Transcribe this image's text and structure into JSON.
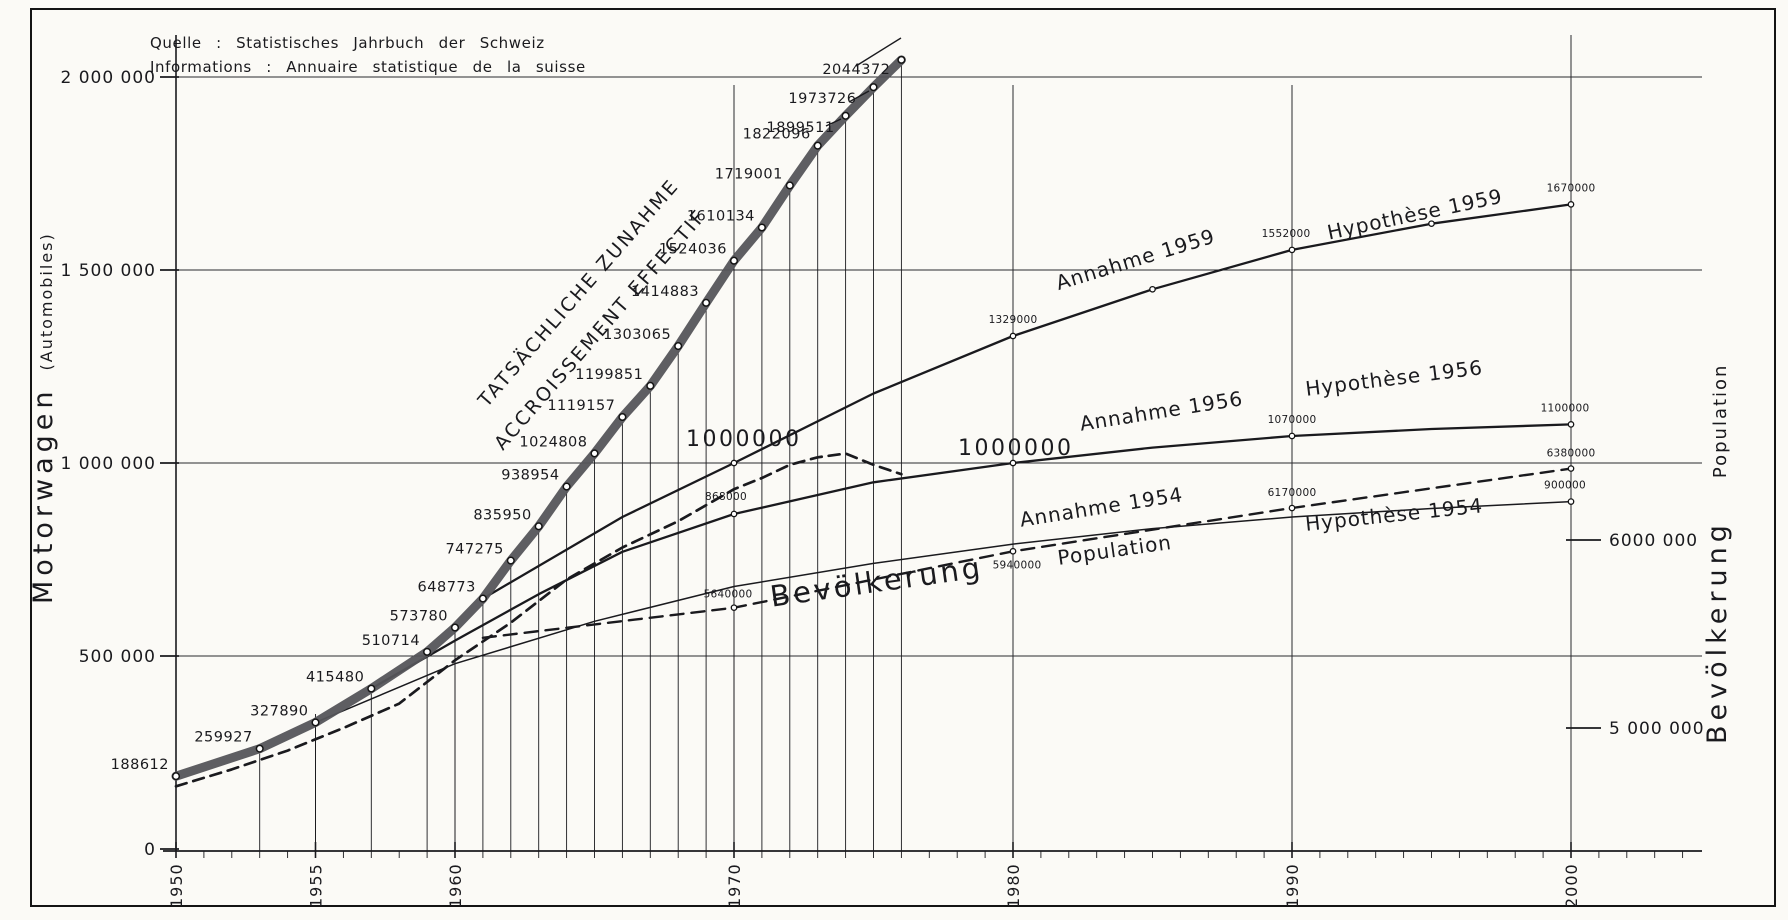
{
  "source": {
    "line1": "Quelle : Statistisches Jahrbuch der Schweiz",
    "line2": "Informations : Annuaire statistique de la suisse"
  },
  "axes": {
    "left": {
      "title_main": "Motorwagen",
      "title_sub": "(Automobiles)",
      "range": [
        0,
        2120000
      ],
      "ticks": [
        {
          "value": 2000000,
          "label": "2 000 000"
        },
        {
          "value": 1500000,
          "label": "1 500 000"
        },
        {
          "value": 1000000,
          "label": "1 000 000"
        },
        {
          "value": 500000,
          "label": "500 000"
        },
        {
          "value": 0,
          "label": "0"
        }
      ]
    },
    "right": {
      "title_main": "Bevölkerung",
      "title_sub": "Population",
      "ticks": [
        {
          "value": 6000000,
          "label": "6000 000"
        },
        {
          "value": 5000000,
          "label": "5 000 000"
        }
      ]
    },
    "x": {
      "range": [
        1950,
        2004
      ],
      "ticks": [
        1950,
        1955,
        1960,
        1970,
        1980,
        1990,
        2000
      ]
    }
  },
  "chart_data": {
    "type": "line",
    "callouts": {
      "value_1970": "1000000",
      "value_1980": "1000000"
    },
    "series": [
      {
        "name": "actual_cars",
        "annotation_de": "TATSÄCHLICHE ZUNAHME",
        "annotation_fr": "ACCROISSEMENT EFFECTIF",
        "axis": "left",
        "style": "thick-band",
        "points": [
          {
            "year": 1950,
            "value": 188612,
            "label": "188612"
          },
          {
            "year": 1953,
            "value": 259927,
            "label": "259927"
          },
          {
            "year": 1955,
            "value": 327890,
            "label": "327890"
          },
          {
            "year": 1957,
            "value": 415480,
            "label": "415480"
          },
          {
            "year": 1959,
            "value": 510714,
            "label": "510714"
          },
          {
            "year": 1960,
            "value": 573780,
            "label": "573780"
          },
          {
            "year": 1961,
            "value": 648773,
            "label": "648773"
          },
          {
            "year": 1962,
            "value": 747275,
            "label": "747275"
          },
          {
            "year": 1963,
            "value": 835950,
            "label": "835950"
          },
          {
            "year": 1964,
            "value": 938954,
            "label": "938954"
          },
          {
            "year": 1965,
            "value": 1024808,
            "label": "1024808"
          },
          {
            "year": 1966,
            "value": 1119157,
            "label": "1119157"
          },
          {
            "year": 1967,
            "value": 1199851,
            "label": "1199851"
          },
          {
            "year": 1968,
            "value": 1303065,
            "label": "1303065"
          },
          {
            "year": 1969,
            "value": 1414883,
            "label": "1414883"
          },
          {
            "year": 1970,
            "value": 1524036,
            "label": "1524036"
          },
          {
            "year": 1971,
            "value": 1610134,
            "label": "1610134"
          },
          {
            "year": 1972,
            "value": 1719001,
            "label": "1719001"
          },
          {
            "year": 1973,
            "value": 1822096,
            "label": "1822096"
          },
          {
            "year": 1974,
            "value": 1899511,
            "label": "1899511"
          },
          {
            "year": 1975,
            "value": 1973726,
            "label": "1973726"
          },
          {
            "year": 1976,
            "value": 2044372,
            "label": "2044372"
          }
        ]
      },
      {
        "name": "hypothesis_1959",
        "annotation_start": "Annahme 1959",
        "annotation_end": "Hypothèse 1959",
        "axis": "left",
        "style": "solid",
        "points": [
          {
            "year": 1961,
            "value": 648773
          },
          {
            "year": 1966,
            "value": 860000
          },
          {
            "year": 1970,
            "value": 1000000,
            "marker": true
          },
          {
            "year": 1975,
            "value": 1180000
          },
          {
            "year": 1980,
            "value": 1329000,
            "label": "1329000",
            "marker": true
          },
          {
            "year": 1985,
            "value": 1450000,
            "marker": true
          },
          {
            "year": 1990,
            "value": 1552000,
            "label": "1552000",
            "marker": true
          },
          {
            "year": 1995,
            "value": 1620000,
            "marker": true
          },
          {
            "year": 2000,
            "value": 1670000,
            "label": "1670000",
            "marker": true
          }
        ]
      },
      {
        "name": "hypothesis_1956",
        "annotation_start": "Annahme 1956",
        "annotation_end": "Hypothèse 1956",
        "axis": "left",
        "style": "solid",
        "points": [
          {
            "year": 1957,
            "value": 415480
          },
          {
            "year": 1960,
            "value": 540000
          },
          {
            "year": 1963,
            "value": 660000
          },
          {
            "year": 1966,
            "value": 770000
          },
          {
            "year": 1970,
            "value": 868000,
            "label": "868000",
            "marker": true
          },
          {
            "year": 1975,
            "value": 950000
          },
          {
            "year": 1980,
            "value": 1000000,
            "marker": true
          },
          {
            "year": 1985,
            "value": 1040000
          },
          {
            "year": 1990,
            "value": 1070000,
            "label": "1070000",
            "marker": true
          },
          {
            "year": 1995,
            "value": 1088000
          },
          {
            "year": 2000,
            "value": 1100000,
            "label": "1100000",
            "marker": true
          }
        ]
      },
      {
        "name": "hypothesis_1954",
        "annotation_start": "Annahme 1954",
        "annotation_end": "Hypothèse 1954",
        "axis": "left",
        "style": "thin-solid",
        "points": [
          {
            "year": 1955,
            "value": 327890
          },
          {
            "year": 1960,
            "value": 480000
          },
          {
            "year": 1965,
            "value": 590000
          },
          {
            "year": 1970,
            "value": 680000
          },
          {
            "year": 1975,
            "value": 740000
          },
          {
            "year": 1980,
            "value": 790000
          },
          {
            "year": 1985,
            "value": 830000
          },
          {
            "year": 1990,
            "value": 860000
          },
          {
            "year": 1995,
            "value": 882000
          },
          {
            "year": 2000,
            "value": 900000,
            "label": "900000",
            "marker": true
          }
        ]
      },
      {
        "name": "population_projection",
        "annotation_de": "Bevölkerung",
        "annotation_fr": "Population",
        "axis": "right",
        "style": "dashed",
        "points": [
          {
            "year": 1961,
            "value": 5480000
          },
          {
            "year": 1970,
            "value": 5640000,
            "label": "5640000",
            "marker": true
          },
          {
            "year": 1980,
            "value": 5940000,
            "label": "5940000",
            "marker": true
          },
          {
            "year": 1990,
            "value": 6170000,
            "label": "6170000",
            "marker": true
          },
          {
            "year": 2000,
            "value": 6380000,
            "label": "6380000",
            "marker": true
          }
        ]
      },
      {
        "name": "population_actual",
        "axis": "right",
        "style": "dashed",
        "points": [
          {
            "year": 1950,
            "value": 4690000
          },
          {
            "year": 1952,
            "value": 4780000
          },
          {
            "year": 1954,
            "value": 4880000
          },
          {
            "year": 1956,
            "value": 5000000
          },
          {
            "year": 1958,
            "value": 5130000
          },
          {
            "year": 1960,
            "value": 5360000
          },
          {
            "year": 1962,
            "value": 5560000
          },
          {
            "year": 1964,
            "value": 5790000
          },
          {
            "year": 1966,
            "value": 5960000
          },
          {
            "year": 1968,
            "value": 6100000
          },
          {
            "year": 1970,
            "value": 6270000
          },
          {
            "year": 1971,
            "value": 6330000
          },
          {
            "year": 1972,
            "value": 6400000
          },
          {
            "year": 1973,
            "value": 6440000
          },
          {
            "year": 1974,
            "value": 6460000
          },
          {
            "year": 1975,
            "value": 6400000
          },
          {
            "year": 1976,
            "value": 6350000
          }
        ]
      }
    ]
  }
}
